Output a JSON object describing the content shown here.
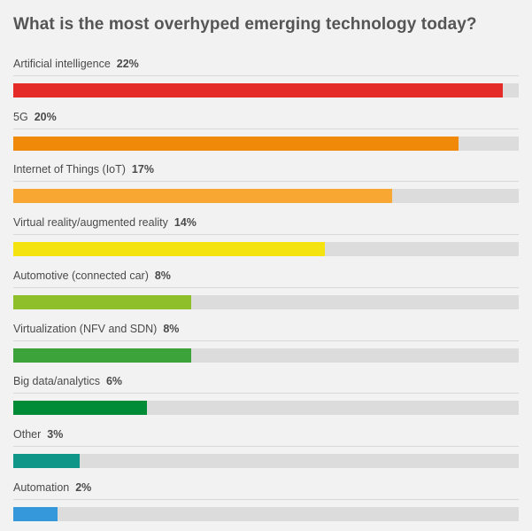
{
  "chart_data": {
    "type": "bar",
    "orientation": "horizontal",
    "title": "What is the most overhyped emerging technology today?",
    "xlim": [
      0,
      22.7
    ],
    "items": [
      {
        "label": "Artificial intelligence",
        "value": 22,
        "value_label": "22%",
        "color": "#e52b27"
      },
      {
        "label": "5G",
        "value": 20,
        "value_label": "20%",
        "color": "#f0880a"
      },
      {
        "label": "Internet of Things (IoT)",
        "value": 17,
        "value_label": "17%",
        "color": "#f8a832"
      },
      {
        "label": "Virtual reality/augmented reality",
        "value": 14,
        "value_label": "14%",
        "color": "#f5e30f"
      },
      {
        "label": "Automotive (connected car)",
        "value": 8,
        "value_label": "8%",
        "color": "#8fbf2b"
      },
      {
        "label": "Virtualization (NFV and SDN)",
        "value": 8,
        "value_label": "8%",
        "color": "#3ba33a"
      },
      {
        "label": "Big data/analytics",
        "value": 6,
        "value_label": "6%",
        "color": "#008c37"
      },
      {
        "label": "Other",
        "value": 3,
        "value_label": "3%",
        "color": "#109688"
      },
      {
        "label": "Automation",
        "value": 2,
        "value_label": "2%",
        "color": "#3498db"
      }
    ]
  }
}
